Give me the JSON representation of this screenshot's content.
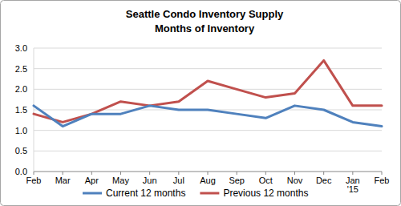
{
  "chart_data": {
    "type": "line",
    "title": "Seattle Condo Inventory Supply",
    "subtitle": "Months of Inventory",
    "categories": [
      "Feb",
      "Mar",
      "Apr",
      "May",
      "Jun",
      "Jul",
      "Aug",
      "Sep",
      "Oct",
      "Nov",
      "Dec",
      "Jan '15",
      "Feb"
    ],
    "series": [
      {
        "name": "Current 12 months",
        "color": "#4f81bd",
        "values": [
          1.6,
          1.1,
          1.4,
          1.4,
          1.6,
          1.5,
          1.5,
          1.4,
          1.3,
          1.6,
          1.5,
          1.2,
          1.1
        ]
      },
      {
        "name": "Previous 12 months",
        "color": "#c0504d",
        "values": [
          1.4,
          1.2,
          1.4,
          1.7,
          1.6,
          1.7,
          2.2,
          2.0,
          1.8,
          1.9,
          2.7,
          1.6,
          1.6
        ]
      }
    ],
    "ylim": [
      0,
      3
    ],
    "yticks": [
      {
        "value": 0,
        "label": "0.0"
      },
      0.5,
      {
        "value": 1,
        "label": "1.0"
      },
      1.5,
      {
        "value": 2,
        "label": "2.0"
      },
      2.5,
      {
        "value": 3,
        "label": "3.0"
      }
    ],
    "grid": true,
    "legend": "bottom"
  }
}
